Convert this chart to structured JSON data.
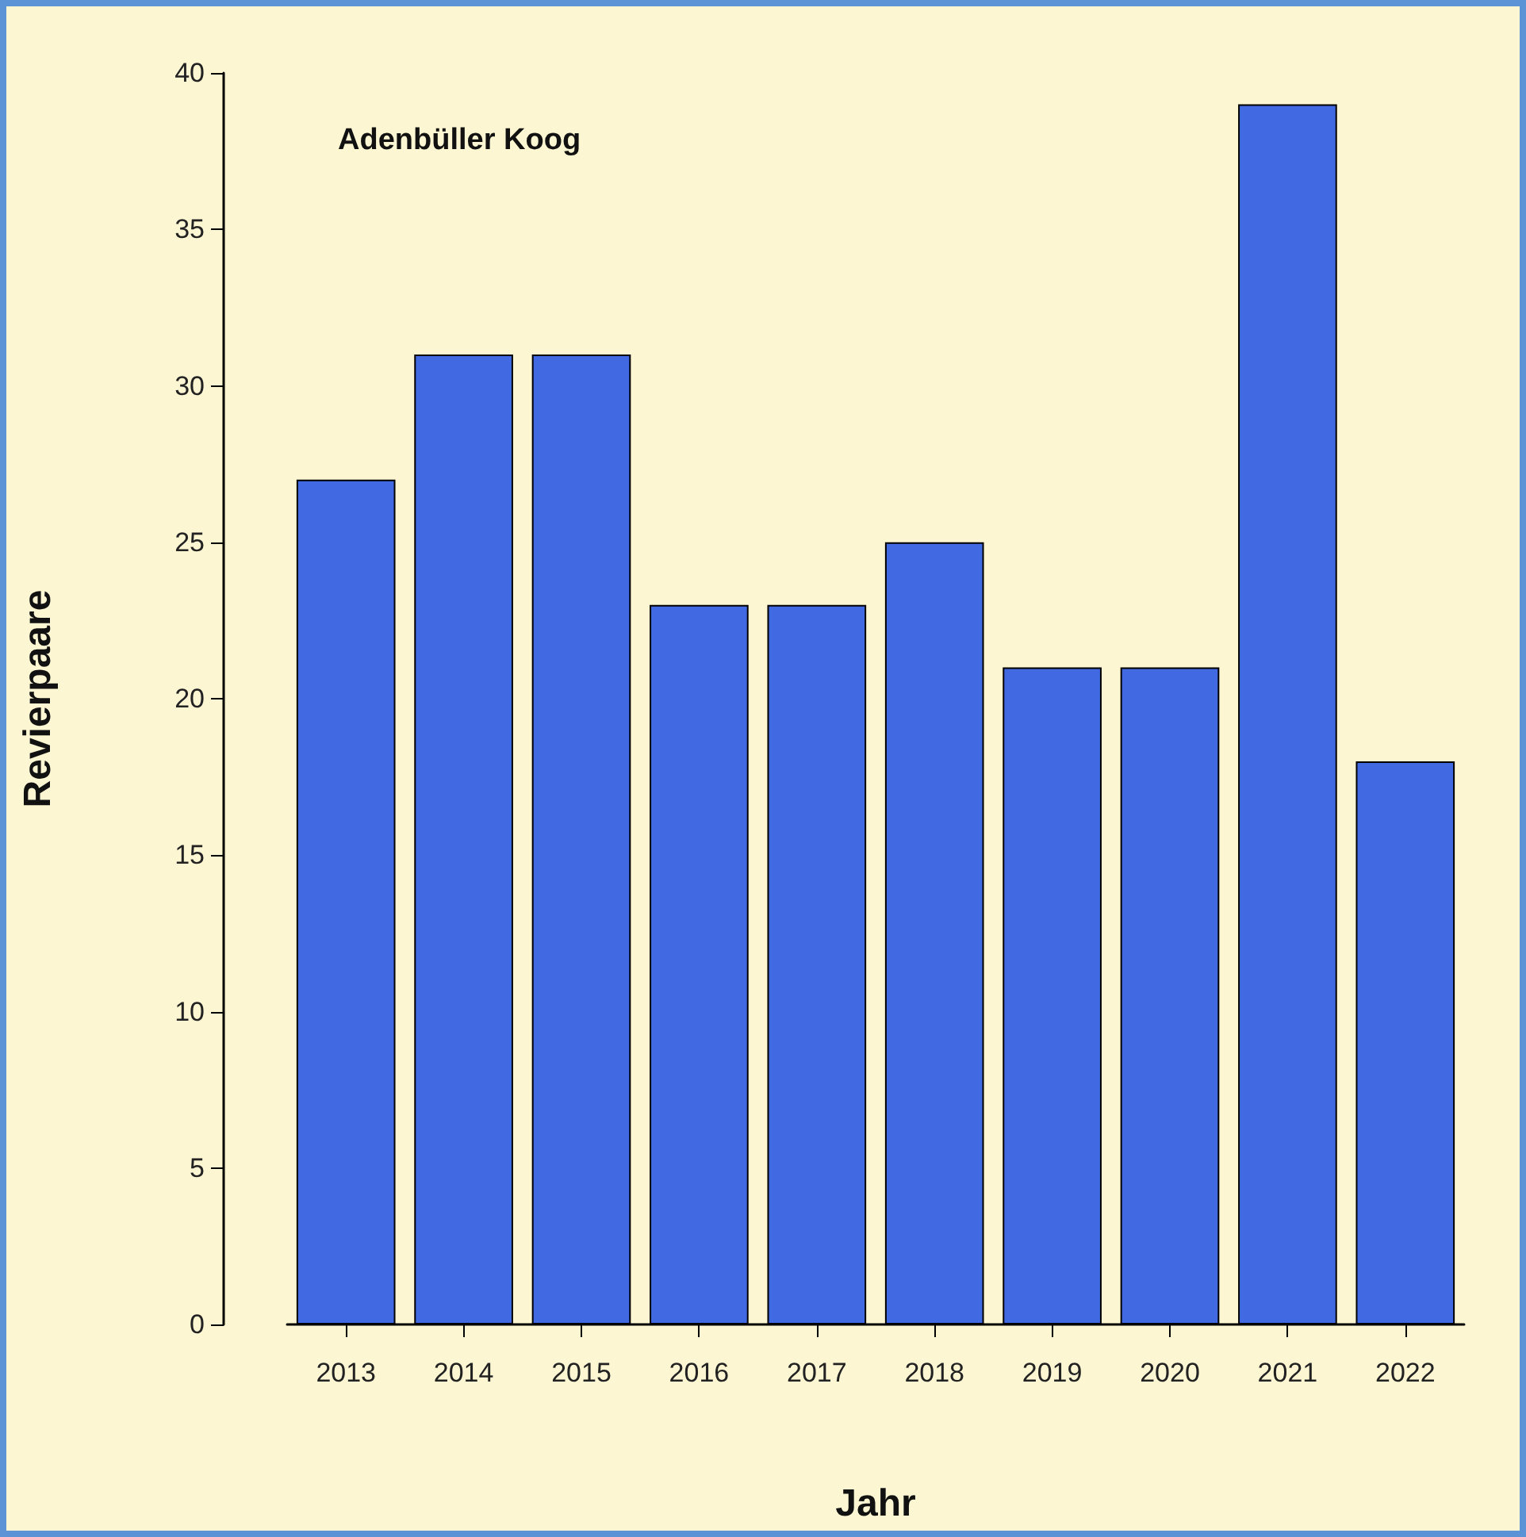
{
  "chart_data": {
    "type": "bar",
    "title": "Adenbüller Koog",
    "xlabel": "Jahr",
    "ylabel": "Revierpaare",
    "categories": [
      "2013",
      "2014",
      "2015",
      "2016",
      "2017",
      "2018",
      "2019",
      "2020",
      "2021",
      "2022"
    ],
    "values": [
      27,
      31,
      31,
      23,
      23,
      25,
      21,
      21,
      39,
      18
    ],
    "color": "#4169e1",
    "ylim": [
      0,
      40
    ],
    "yticks": [
      0,
      5,
      10,
      15,
      20,
      25,
      30,
      35,
      40
    ],
    "grid": false
  }
}
